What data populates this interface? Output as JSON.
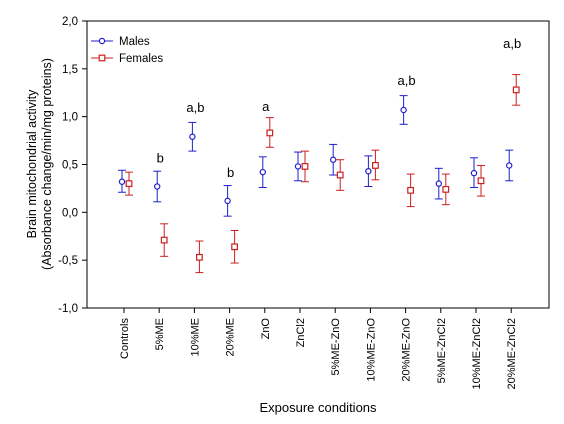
{
  "chart_data": {
    "type": "scatter",
    "ylabel_lines": [
      "Brain mitochondrial activity",
      "(Absorbance change/min/mg proteins)"
    ],
    "xlabel": "Exposure conditions",
    "ylim": [
      -1.0,
      2.0
    ],
    "yticks": [
      "-1,0",
      "-0,5",
      "0,0",
      "0,5",
      "1,0",
      "1,5",
      "2,0"
    ],
    "ytick_values": [
      -1.0,
      -0.5,
      0.0,
      0.5,
      1.0,
      1.5,
      2.0
    ],
    "categories": [
      "Controls",
      "5%ME",
      "10%ME",
      "20%ME",
      "ZnO",
      "ZnCl2",
      "5%ME-ZnO",
      "10%ME-ZnO",
      "20%ME-ZnO",
      "5%ME-ZnCl2",
      "10%ME-ZnCl2",
      "20%ME-ZnCl2"
    ],
    "legend_position": "top-left",
    "series": [
      {
        "name": "Males",
        "color": "#1f1fcc",
        "marker": "circle",
        "values": [
          0.32,
          0.27,
          0.79,
          0.12,
          0.42,
          0.48,
          0.55,
          0.43,
          1.07,
          0.3,
          0.41,
          0.49
        ],
        "err_low": [
          0.21,
          0.11,
          0.64,
          -0.04,
          0.26,
          0.33,
          0.39,
          0.27,
          0.92,
          0.14,
          0.26,
          0.33
        ],
        "err_high": [
          0.44,
          0.43,
          0.94,
          0.28,
          0.58,
          0.63,
          0.71,
          0.59,
          1.22,
          0.46,
          0.57,
          0.65
        ]
      },
      {
        "name": "Females",
        "color": "#cc1f1f",
        "marker": "square",
        "values": [
          0.3,
          -0.29,
          -0.47,
          -0.36,
          0.83,
          0.48,
          0.39,
          0.49,
          0.23,
          0.24,
          0.33,
          1.28
        ],
        "err_low": [
          0.18,
          -0.46,
          -0.63,
          -0.53,
          0.68,
          0.32,
          0.23,
          0.34,
          0.06,
          0.08,
          0.17,
          1.12
        ],
        "err_high": [
          0.42,
          -0.12,
          -0.3,
          -0.19,
          0.99,
          0.64,
          0.55,
          0.65,
          0.4,
          0.4,
          0.49,
          1.44
        ]
      }
    ],
    "annotations": [
      {
        "category_index": 1,
        "text": "b",
        "y": 0.52
      },
      {
        "category_index": 2,
        "text": "a,b",
        "y": 1.05
      },
      {
        "category_index": 3,
        "text": "b",
        "y": 0.37
      },
      {
        "category_index": 4,
        "text": "a",
        "y": 1.06
      },
      {
        "category_index": 8,
        "text": "a,b",
        "y": 1.33
      },
      {
        "category_index": 11,
        "text": "a,b",
        "y": 1.72
      }
    ],
    "grid": false
  }
}
